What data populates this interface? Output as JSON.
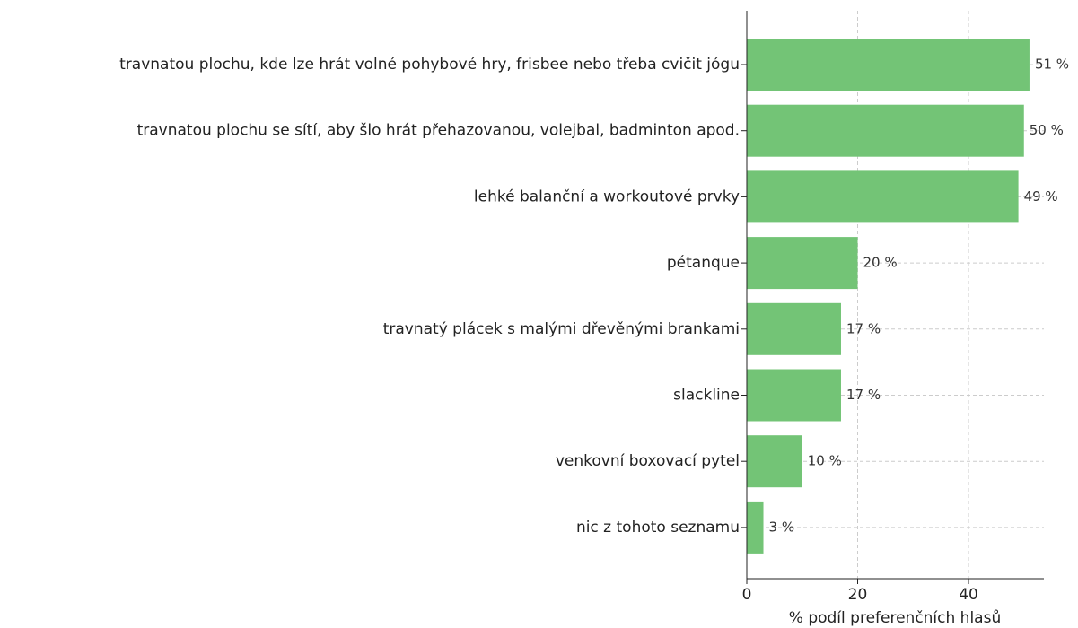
{
  "chart_data": {
    "type": "barh",
    "xlabel": "% podíl preferenčních hlasů",
    "categories": [
      "travnatou plochu, kde lze hrát volné pohybové hry, frisbee nebo třeba cvičit jógu",
      "travnatou plochu se sítí, aby šlo hrát přehazovanou, volejbal, badminton apod.",
      "lehké balanční a workoutové prvky",
      "pétanque",
      "travnatý plácek s malými dřevěnými brankami",
      "slackline",
      "venkovní boxovací pytel",
      "nic z tohoto seznamu"
    ],
    "values": [
      51,
      50,
      49,
      20,
      17,
      17,
      10,
      3
    ],
    "value_labels": [
      "51 %",
      "50 %",
      "49 %",
      "20 %",
      "17 %",
      "17 %",
      "10 %",
      "3 %"
    ],
    "color": "#73c476",
    "xlim": [
      0,
      53.6
    ],
    "xticks": [
      0,
      20,
      40
    ],
    "grid": true
  }
}
